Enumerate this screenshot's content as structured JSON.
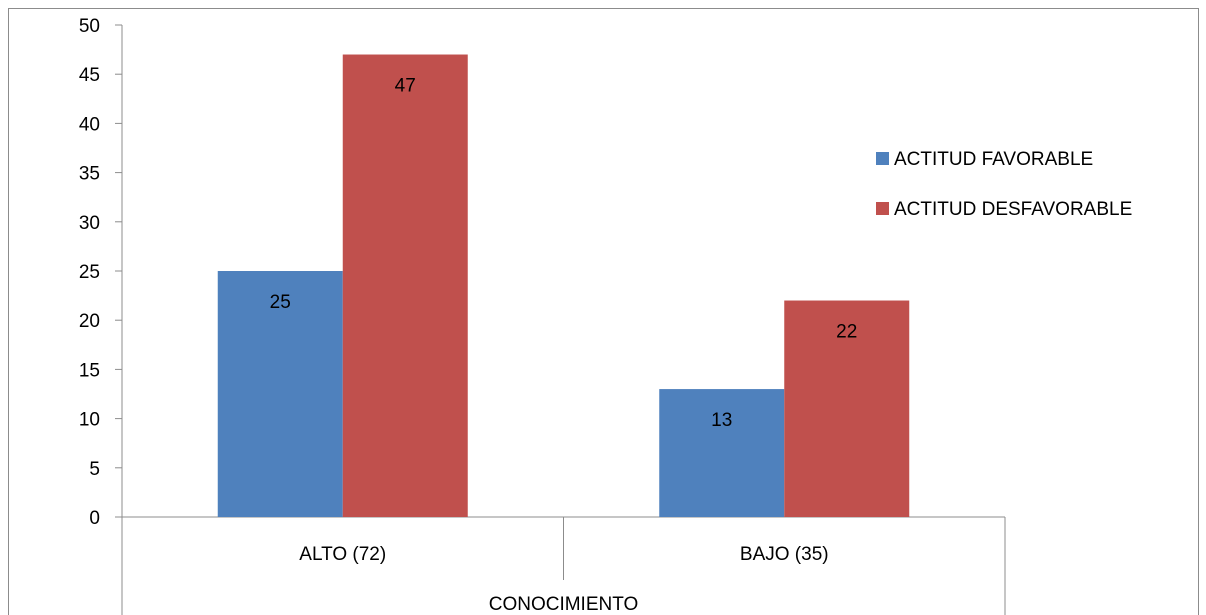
{
  "chart_data": {
    "type": "bar",
    "title": "",
    "xlabel": "CONOCIMIENTO",
    "ylabel": "",
    "categories": [
      "ALTO (72)",
      "BAJO (35)"
    ],
    "series": [
      {
        "name": "ACTITUD FAVORABLE",
        "values": [
          25,
          13
        ],
        "color": "#4F81BD"
      },
      {
        "name": "ACTITUD DESFAVORABLE",
        "values": [
          47,
          22
        ],
        "color": "#C0504D"
      }
    ],
    "ylim": [
      0,
      50
    ],
    "yticks": [
      "0",
      "5",
      "10",
      "15",
      "20",
      "25",
      "30",
      "35",
      "40",
      "45",
      "50"
    ],
    "data_labels": [
      [
        "25",
        "13"
      ],
      [
        "47",
        "22"
      ]
    ],
    "grid": false,
    "legend_position": "right"
  }
}
